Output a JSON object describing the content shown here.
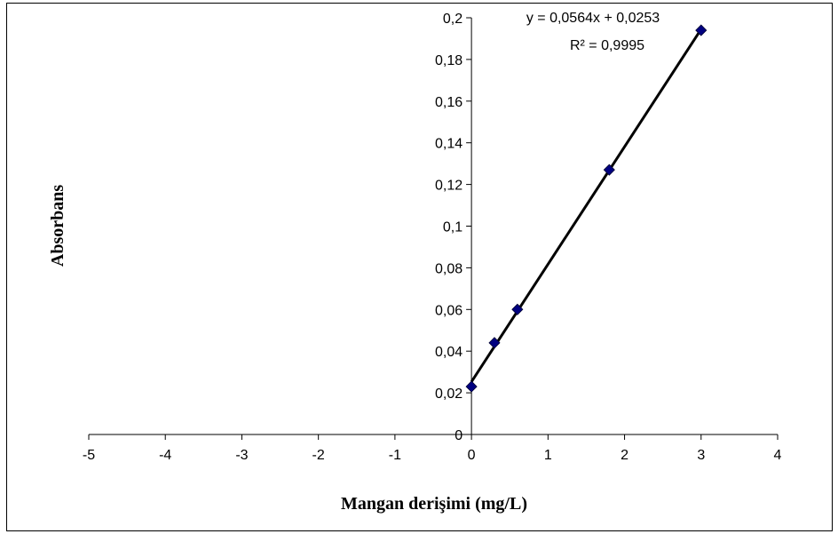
{
  "chart_data": {
    "type": "scatter",
    "xlabel": "Mangan derişimi (mg/L)",
    "ylabel": "Absorbans",
    "xlim": [
      -5,
      4
    ],
    "ylim": [
      0,
      0.2
    ],
    "x_ticks": [
      -5,
      -4,
      -3,
      -2,
      -1,
      0,
      1,
      2,
      3,
      4
    ],
    "x_tick_labels": [
      "-5",
      "-4",
      "-3",
      "-2",
      "-1",
      "0",
      "1",
      "2",
      "3",
      "4"
    ],
    "y_ticks": [
      0,
      0.02,
      0.04,
      0.06,
      0.08,
      0.1,
      0.12,
      0.14,
      0.16,
      0.18,
      0.2
    ],
    "y_tick_labels": [
      "0",
      "0,02",
      "0,04",
      "0,06",
      "0,08",
      "0,1",
      "0,12",
      "0,14",
      "0,16",
      "0,18",
      "0,2"
    ],
    "grid": false,
    "legend": false,
    "series": [
      {
        "x": [
          0,
          0.3,
          0.6,
          1.8,
          3.0
        ],
        "y": [
          0.023,
          0.044,
          0.06,
          0.127,
          0.194
        ],
        "marker": "diamond",
        "color": "#000080"
      }
    ],
    "trendline": {
      "slope": 0.0564,
      "intercept": 0.0253,
      "x_range": [
        0,
        3
      ],
      "color": "#000000",
      "equation_text": "y = 0,0564x + 0,0253",
      "r2_text": "R² = 0,9995"
    }
  }
}
